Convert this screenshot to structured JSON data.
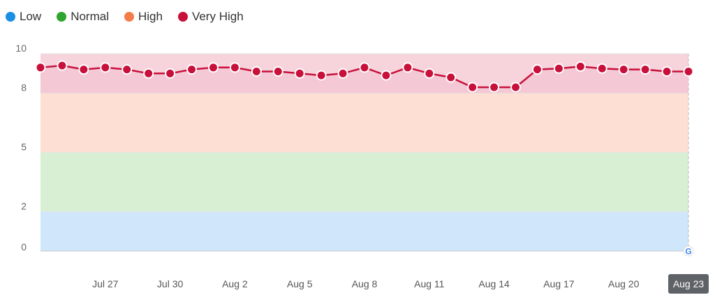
{
  "legend": {
    "items": [
      {
        "label": "Low",
        "color": "#1a8fe3"
      },
      {
        "label": "Normal",
        "color": "#2ea52e"
      },
      {
        "label": "High",
        "color": "#f47c4a"
      },
      {
        "label": "Very High",
        "color": "#c8103b"
      }
    ]
  },
  "bands": [
    {
      "name": "Low",
      "from": 0,
      "to": 2,
      "color": "#cfe6fb"
    },
    {
      "name": "Normal",
      "from": 2,
      "to": 5,
      "color": "#d8efd4"
    },
    {
      "name": "High",
      "from": 5,
      "to": 8,
      "color": "#fde0d3"
    },
    {
      "name": "Very High",
      "from": 8,
      "to": 10,
      "color": "#f7d3dc"
    }
  ],
  "chart_data": {
    "type": "line",
    "title": "",
    "xlabel": "",
    "ylabel": "",
    "ylim": [
      0,
      10
    ],
    "yticks": [
      0,
      2,
      5,
      8,
      10
    ],
    "x_start": "Jul 24",
    "x_end": "Aug 23",
    "xticks": [
      "Jul 27",
      "Jul 30",
      "Aug 2",
      "Aug 5",
      "Aug 8",
      "Aug 11",
      "Aug 14",
      "Aug 17",
      "Aug 20",
      "Aug 23"
    ],
    "xtick_highlight": "Aug 23",
    "grid": true,
    "legend_position": "top-left",
    "series": [
      {
        "name": "Very High",
        "color": "#c8103b",
        "x": [
          "Jul 24",
          "Jul 25",
          "Jul 26",
          "Jul 27",
          "Jul 28",
          "Jul 29",
          "Jul 30",
          "Jul 31",
          "Aug 1",
          "Aug 2",
          "Aug 3",
          "Aug 4",
          "Aug 5",
          "Aug 6",
          "Aug 7",
          "Aug 8",
          "Aug 9",
          "Aug 10",
          "Aug 11",
          "Aug 12",
          "Aug 13",
          "Aug 14",
          "Aug 15",
          "Aug 16",
          "Aug 17",
          "Aug 18",
          "Aug 19",
          "Aug 20",
          "Aug 21",
          "Aug 22",
          "Aug 23"
        ],
        "values": [
          9.3,
          9.4,
          9.2,
          9.3,
          9.2,
          9.0,
          9.0,
          9.2,
          9.3,
          9.3,
          9.1,
          9.1,
          9.0,
          8.9,
          9.0,
          9.3,
          8.9,
          9.3,
          9.0,
          8.8,
          8.3,
          8.3,
          8.3,
          9.2,
          9.25,
          9.35,
          9.25,
          9.2,
          9.2,
          9.1,
          9.1
        ]
      }
    ]
  },
  "google_marker": {
    "label": "G",
    "x": "Aug 23",
    "icon": "google-g-icon"
  }
}
